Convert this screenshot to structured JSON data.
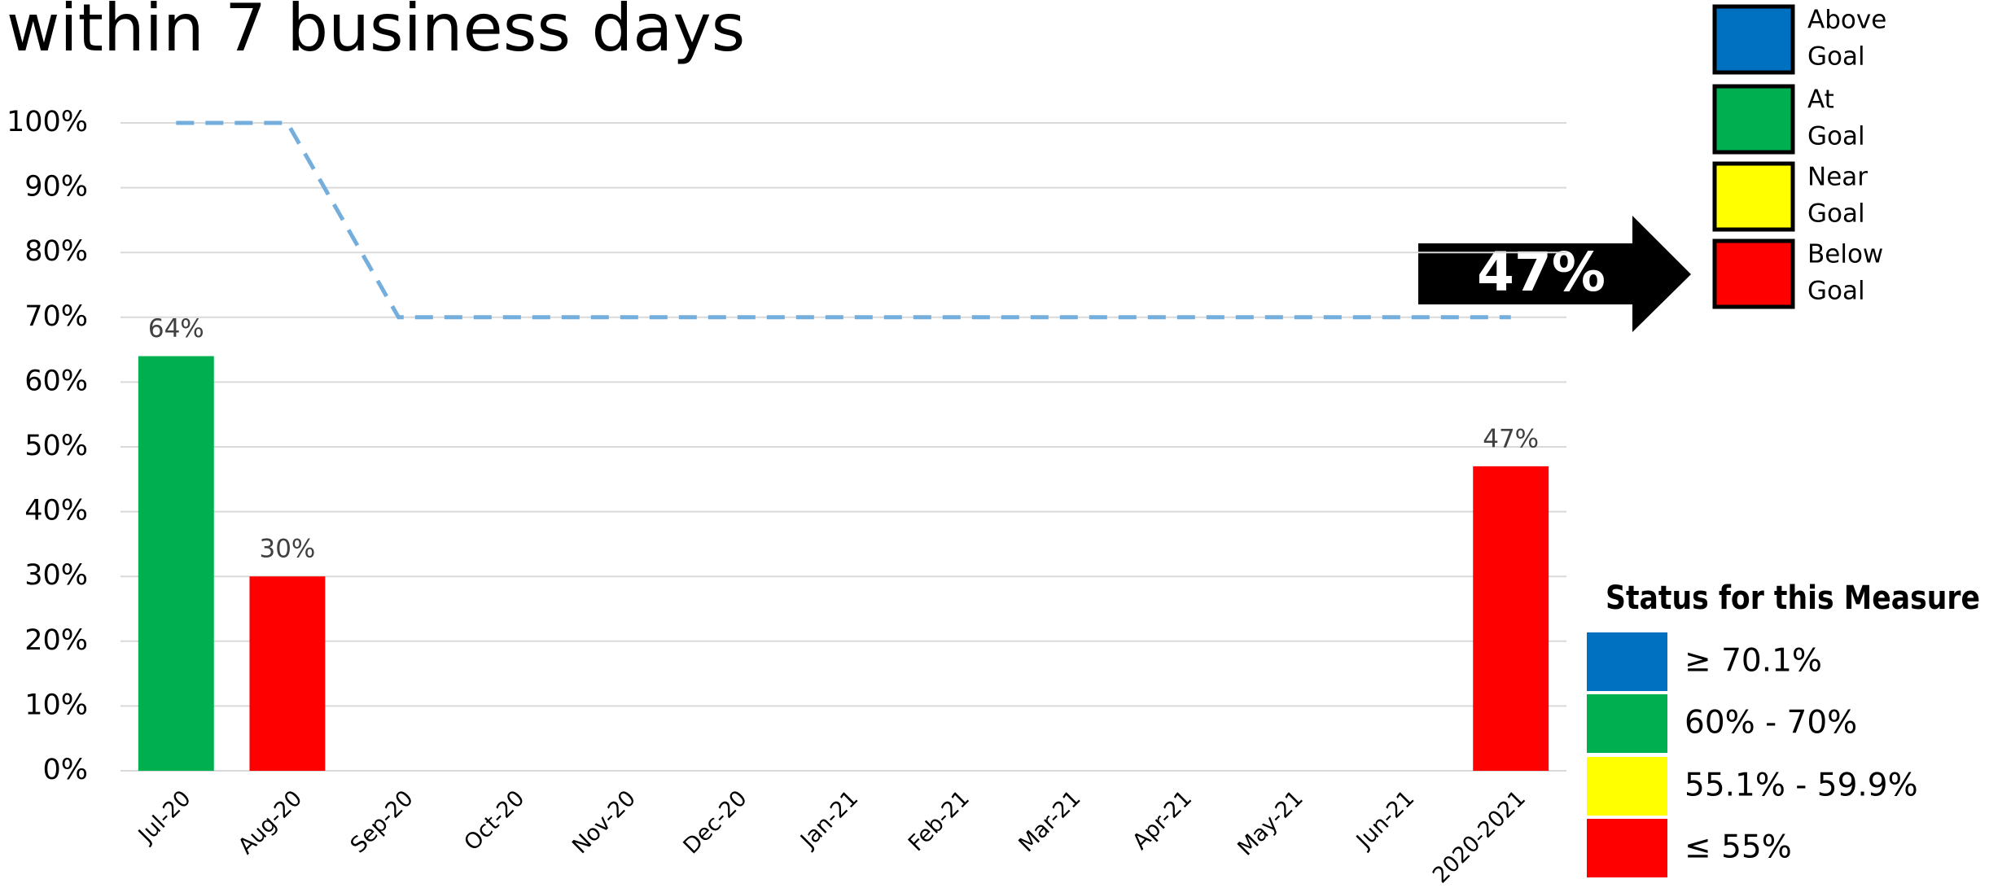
{
  "chart_data": {
    "type": "bar",
    "title": "within 7 business days",
    "categories": [
      "Jul-20",
      "Aug-20",
      "Sep-20",
      "Oct-20",
      "Nov-20",
      "Dec-20",
      "Jan-21",
      "Feb-21",
      "Mar-21",
      "Apr-21",
      "May-21",
      "Jun-21",
      "2020-2021"
    ],
    "values": [
      64,
      30,
      null,
      null,
      null,
      null,
      null,
      null,
      null,
      null,
      null,
      null,
      47
    ],
    "value_labels": [
      "64%",
      "30%",
      null,
      null,
      null,
      null,
      null,
      null,
      null,
      null,
      null,
      null,
      "47%"
    ],
    "colors": [
      "#00b050",
      "#ff0000",
      null,
      null,
      null,
      null,
      null,
      null,
      null,
      null,
      null,
      null,
      "#ff0000"
    ],
    "goal": {
      "values": [
        100,
        100,
        70,
        70,
        70,
        70,
        70,
        70,
        70,
        70,
        70,
        70,
        70
      ],
      "color": "#74aedd"
    },
    "ylim": [
      0,
      100
    ],
    "yticks": [
      {
        "value": 0,
        "label": "0%"
      },
      {
        "value": 10,
        "label": "10%"
      },
      {
        "value": 20,
        "label": "20%"
      },
      {
        "value": 30,
        "label": "30%"
      },
      {
        "value": 40,
        "label": "40%"
      },
      {
        "value": 50,
        "label": "50%"
      },
      {
        "value": 60,
        "label": "60%"
      },
      {
        "value": 70,
        "label": "70%"
      },
      {
        "value": 80,
        "label": "80%"
      },
      {
        "value": 90,
        "label": "90%"
      },
      {
        "value": 100,
        "label": "100%"
      }
    ],
    "grid": true,
    "callout": "47%",
    "legend": [
      {
        "label": [
          "Above",
          "Goal"
        ],
        "color": "#0070c0"
      },
      {
        "label": [
          "At",
          "Goal"
        ],
        "color": "#00b050"
      },
      {
        "label": [
          "Near",
          "Goal"
        ],
        "color": "#ffff00"
      },
      {
        "label": [
          "Below",
          "Goal"
        ],
        "color": "#ff0000"
      }
    ],
    "status": {
      "title": "Status for this Measure",
      "rows": [
        {
          "label": "≥ 70.1%",
          "color": "#0070c0"
        },
        {
          "label": "60% - 70%",
          "color": "#00b050"
        },
        {
          "label": "55.1% - 59.9%",
          "color": "#ffff00"
        },
        {
          "label": "≤ 55%",
          "color": "#ff0000"
        }
      ]
    }
  }
}
